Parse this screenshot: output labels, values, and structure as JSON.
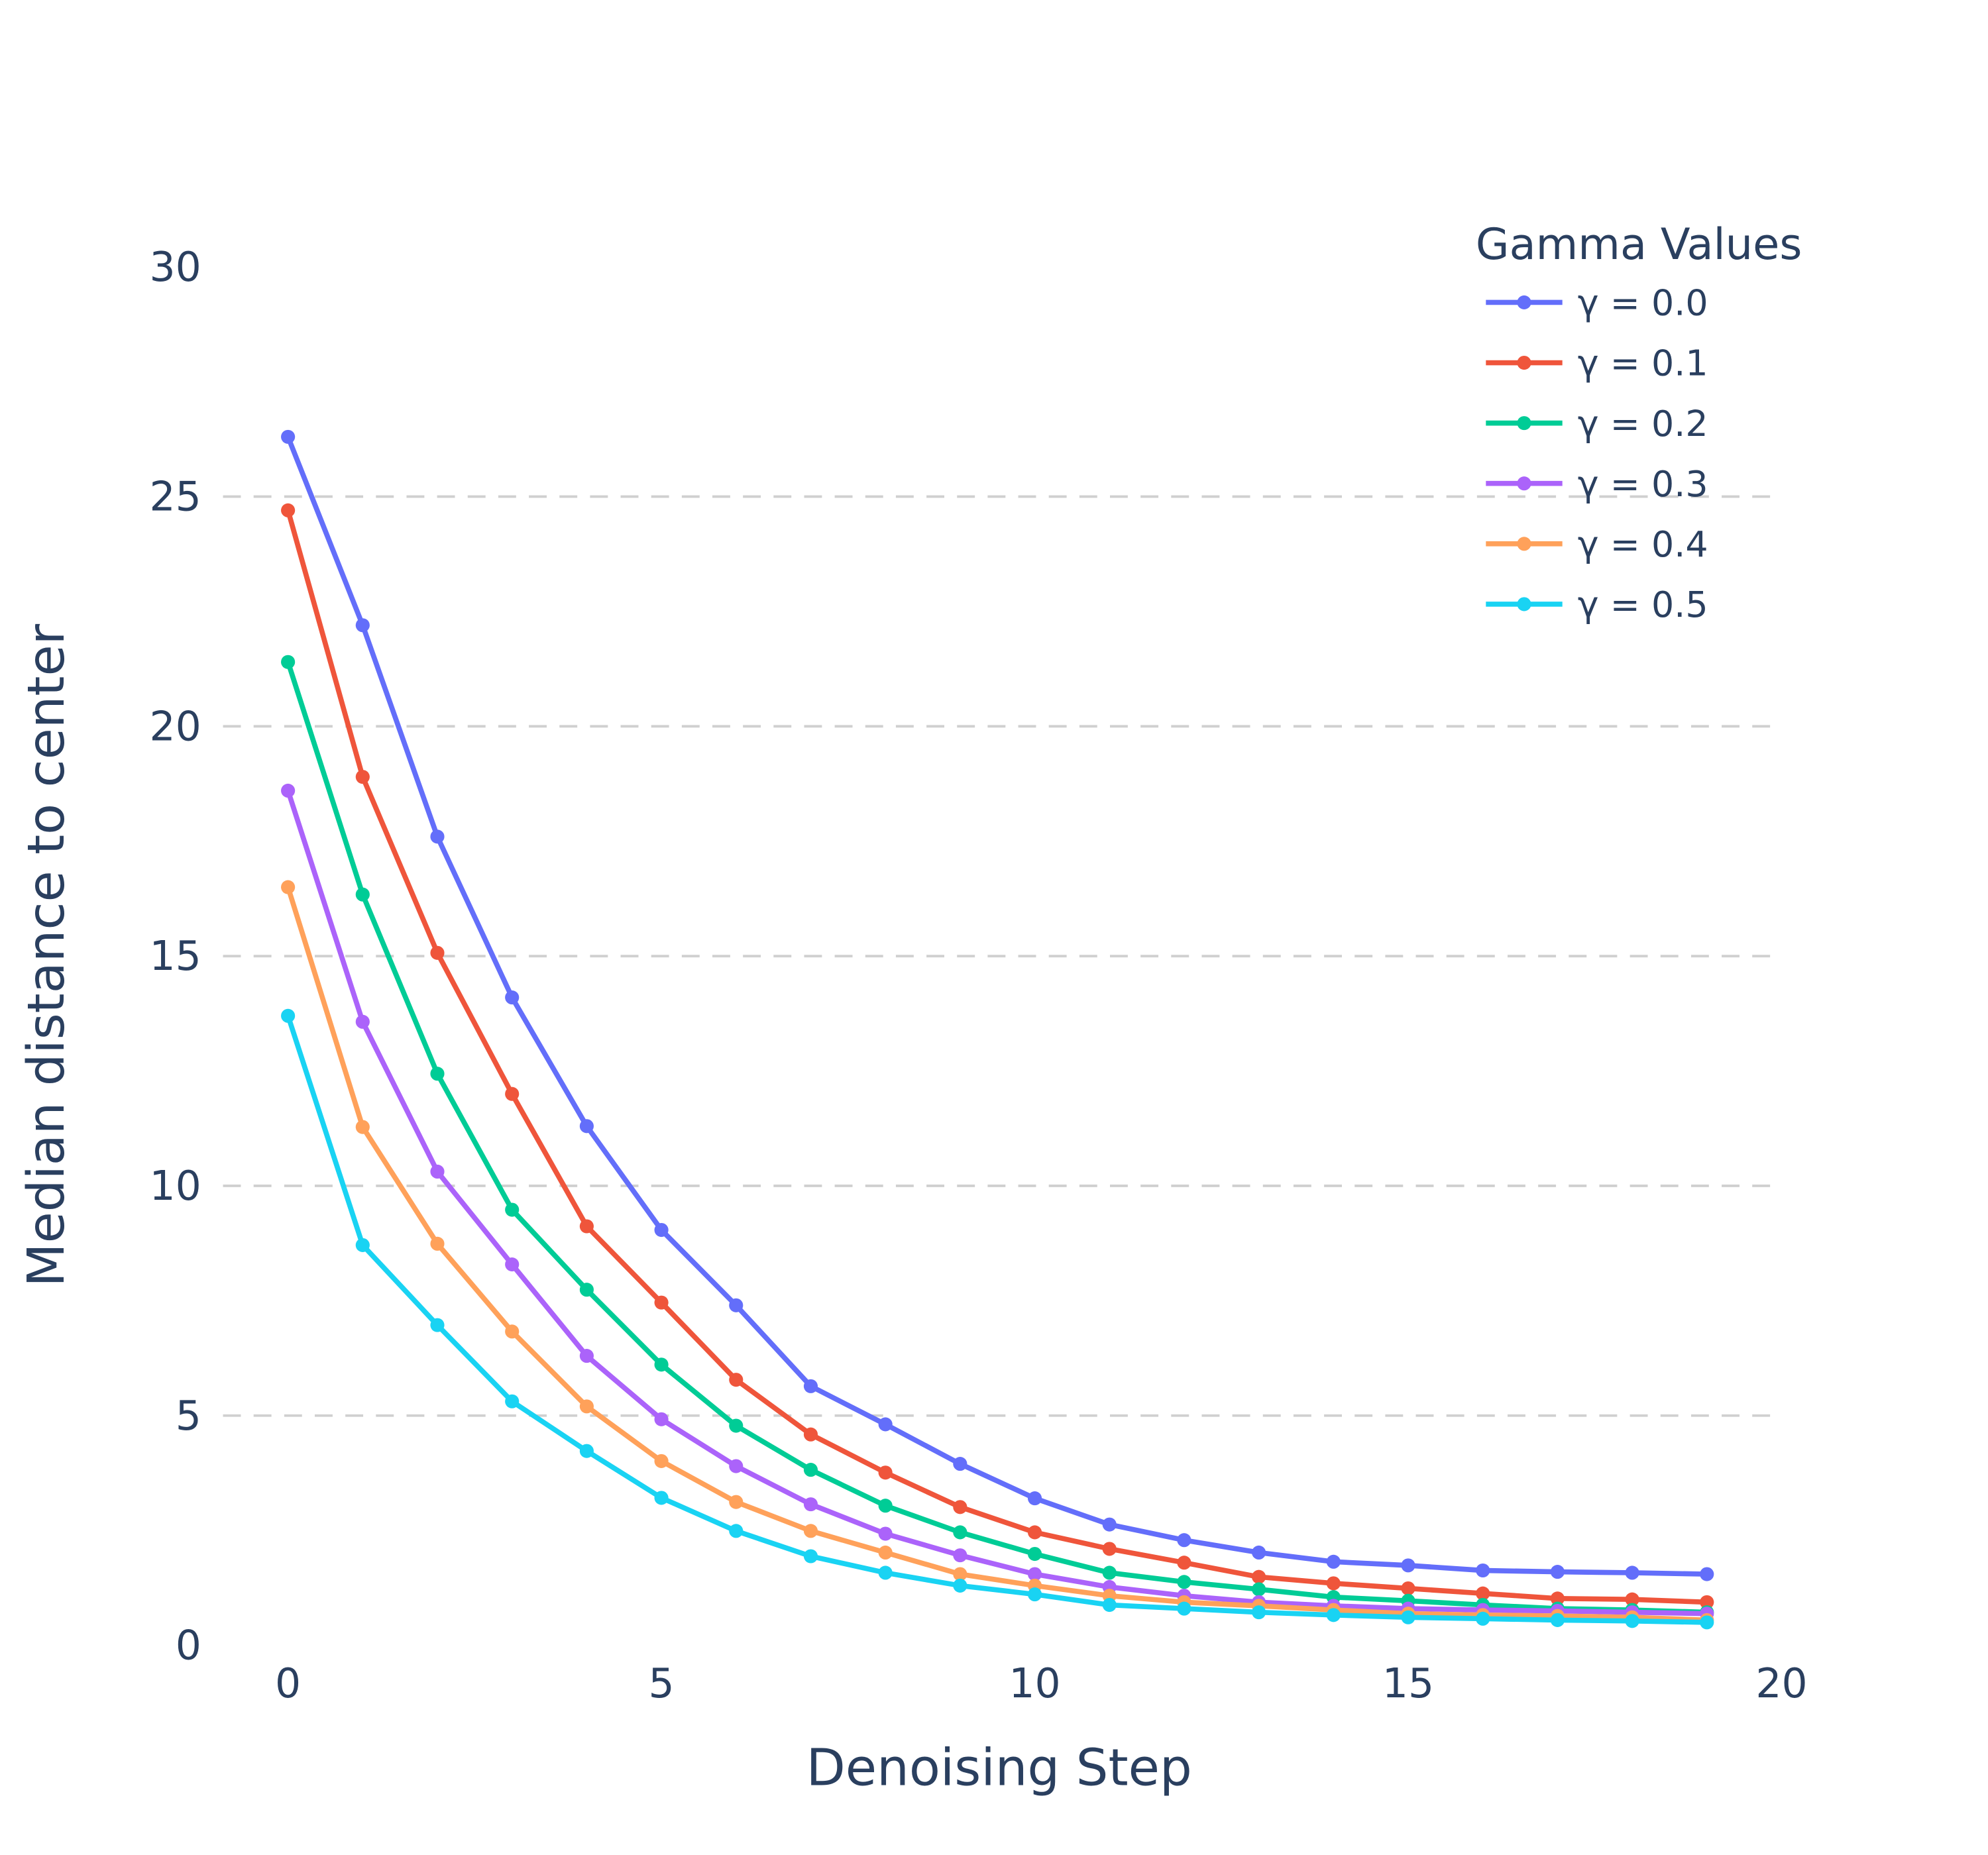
{
  "chart_data": {
    "type": "line",
    "title": "",
    "xlabel": "Denoising Step",
    "ylabel": "Median distance to center",
    "xlim": [
      -1,
      20
    ],
    "ylim": [
      0,
      30
    ],
    "x_ticks": [
      0,
      5,
      10,
      15,
      20
    ],
    "y_ticks": [
      0,
      5,
      10,
      15,
      20,
      25,
      30
    ],
    "grid": "horizontal dashed",
    "legend_title": "Gamma Values",
    "legend_position": "top-right",
    "x": [
      0,
      1,
      2,
      3,
      4,
      5,
      6,
      7,
      8,
      9,
      10,
      11,
      12,
      13,
      14,
      15,
      16,
      17,
      18,
      19
    ],
    "series": [
      {
        "name": "γ = 0.0",
        "color": "#636efa",
        "values": [
          26.3,
          22.2,
          17.6,
          14.1,
          11.3,
          9.04,
          7.4,
          5.64,
          4.81,
          3.95,
          3.2,
          2.63,
          2.29,
          2.02,
          1.82,
          1.74,
          1.63,
          1.6,
          1.58,
          1.55
        ]
      },
      {
        "name": "γ = 0.1",
        "color": "#ef553b",
        "values": [
          24.7,
          18.9,
          15.07,
          12.0,
          9.12,
          7.46,
          5.78,
          4.59,
          3.76,
          3.01,
          2.46,
          2.1,
          1.8,
          1.49,
          1.35,
          1.24,
          1.13,
          1.02,
          1.0,
          0.94
        ]
      },
      {
        "name": "γ = 0.2",
        "color": "#00cc96",
        "values": [
          21.4,
          16.34,
          12.44,
          9.48,
          7.74,
          6.11,
          4.78,
          3.82,
          3.04,
          2.46,
          1.99,
          1.58,
          1.38,
          1.22,
          1.05,
          0.97,
          0.88,
          0.8,
          0.77,
          0.72
        ]
      },
      {
        "name": "γ = 0.3",
        "color": "#ab63fa",
        "values": [
          18.6,
          13.57,
          10.31,
          8.29,
          6.3,
          4.92,
          3.9,
          3.07,
          2.43,
          1.96,
          1.55,
          1.27,
          1.08,
          0.94,
          0.86,
          0.8,
          0.77,
          0.75,
          0.72,
          0.69
        ]
      },
      {
        "name": "γ = 0.4",
        "color": "#ffa15a",
        "values": [
          16.5,
          11.28,
          8.74,
          6.83,
          5.2,
          4.01,
          3.12,
          2.49,
          2.02,
          1.55,
          1.3,
          1.08,
          0.94,
          0.86,
          0.77,
          0.69,
          0.66,
          0.64,
          0.61,
          0.55
        ]
      },
      {
        "name": "γ = 0.5",
        "color": "#19d3f3",
        "values": [
          13.7,
          8.71,
          6.97,
          5.31,
          4.23,
          3.21,
          2.49,
          1.94,
          1.58,
          1.3,
          1.11,
          0.88,
          0.8,
          0.72,
          0.66,
          0.61,
          0.58,
          0.55,
          0.53,
          0.5
        ]
      }
    ]
  }
}
